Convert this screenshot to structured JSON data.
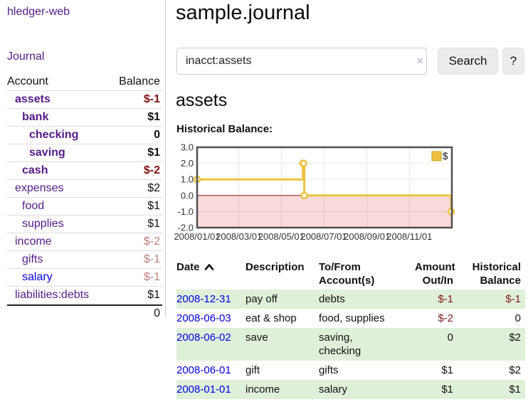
{
  "app": {
    "title": "hledger-web"
  },
  "sidebar": {
    "journal_link": "Journal",
    "accounts_table": {
      "headers": {
        "account": "Account",
        "balance": "Balance"
      },
      "rows": [
        {
          "account": "assets",
          "depth": 1,
          "bold": true,
          "balance": "$-1",
          "balance_style": "neg-strong"
        },
        {
          "account": "bank",
          "depth": 2,
          "bold": true,
          "balance": "$1",
          "balance_style": "pos"
        },
        {
          "account": "checking",
          "depth": 3,
          "bold": true,
          "balance": "0",
          "balance_style": "pos"
        },
        {
          "account": "saving",
          "depth": 3,
          "bold": true,
          "balance": "$1",
          "balance_style": "pos"
        },
        {
          "account": "cash",
          "depth": 2,
          "bold": true,
          "balance": "$-2",
          "balance_style": "neg-strong"
        },
        {
          "account": "expenses",
          "depth": 1,
          "bold": false,
          "balance": "$2",
          "balance_style": "pos"
        },
        {
          "account": "food",
          "depth": 2,
          "bold": false,
          "balance": "$1",
          "balance_style": "pos"
        },
        {
          "account": "supplies",
          "depth": 2,
          "bold": false,
          "balance": "$1",
          "balance_style": "pos"
        },
        {
          "account": "income",
          "depth": 1,
          "bold": false,
          "balance": "$-2",
          "balance_style": "neg-soft"
        },
        {
          "account": "gifts",
          "depth": 2,
          "bold": false,
          "balance": "$-1",
          "balance_style": "neg-soft"
        },
        {
          "account": "salary",
          "depth": 2,
          "bold": false,
          "link_color": "blue",
          "balance": "$-1",
          "balance_style": "neg-soft"
        },
        {
          "account": "liabilities:debts",
          "depth": 1,
          "bold": false,
          "balance": "$1",
          "balance_style": "pos"
        }
      ],
      "total": "0"
    }
  },
  "main": {
    "title": "sample.journal",
    "search": {
      "value": "inacct:assets",
      "clear_icon": "×",
      "button": "Search",
      "help_button": "?"
    },
    "account_heading": "assets",
    "chart_label": "Historical Balance:"
  },
  "chart_data": {
    "type": "line",
    "step": true,
    "title": "Historical Balance:",
    "series": [
      {
        "name": "$",
        "color": "#EDC240",
        "points": [
          {
            "date": "2008-01-01",
            "value": 1
          },
          {
            "date": "2008-06-01",
            "value": 2
          },
          {
            "date": "2008-06-02",
            "value": 2
          },
          {
            "date": "2008-06-03",
            "value": 0
          },
          {
            "date": "2008-12-31",
            "value": -1
          }
        ]
      }
    ],
    "x_range": [
      "2008-01-01",
      "2009-01-01"
    ],
    "ylim": [
      -2,
      3
    ],
    "y_ticks": [
      {
        "v": 3,
        "label": "3.0"
      },
      {
        "v": 2,
        "label": "2.0"
      },
      {
        "v": 1,
        "label": "1.0"
      },
      {
        "v": 0,
        "label": "0.0"
      },
      {
        "v": -1,
        "label": "-1.0"
      },
      {
        "v": -2,
        "label": "-2.0"
      }
    ],
    "x_ticks": [
      {
        "date": "2008-01-01",
        "label": "2008/01/01"
      },
      {
        "date": "2008-03-01",
        "label": "2008/03/01"
      },
      {
        "date": "2008-05-01",
        "label": "2008/05/01"
      },
      {
        "date": "2008-07-01",
        "label": "2008/07/01"
      },
      {
        "date": "2008-09-01",
        "label": "2008/09/01"
      },
      {
        "date": "2008-11-01",
        "label": "2008/11/01"
      }
    ],
    "legend": {
      "label": "$",
      "position": "top-right"
    },
    "grid": true,
    "colors": {
      "negative_region": "#f9d9d9",
      "zero_line": "#8b1515",
      "grid": "rgba(0,0,0,0.09)",
      "border": "#4f4f4f",
      "point_fill": "#ffffff",
      "legend_box_border": "#c9a126",
      "axis_text": "#333333"
    }
  },
  "transactions": {
    "headers": {
      "date": "Date",
      "description": "Description",
      "accounts": "To/From Account(s)",
      "amount": "Amount Out/In",
      "balance": "Historical Balance"
    },
    "rows": [
      {
        "date": "2008-12-31",
        "description": "pay off",
        "accounts": "debts",
        "amount": "$-1",
        "amount_neg": true,
        "balance": "$-1",
        "balance_neg": true,
        "shaded": true
      },
      {
        "date": "2008-06-03",
        "description": "eat & shop",
        "accounts": "food, supplies",
        "amount": "$-2",
        "amount_neg": true,
        "balance": "0",
        "balance_neg": false,
        "shaded": false
      },
      {
        "date": "2008-06-02",
        "description": "save",
        "accounts": "saving, checking",
        "amount": "0",
        "amount_neg": false,
        "balance": "$2",
        "balance_neg": false,
        "shaded": true
      },
      {
        "date": "2008-06-01",
        "description": "gift",
        "accounts": "gifts",
        "amount": "$1",
        "amount_neg": false,
        "balance": "$2",
        "balance_neg": false,
        "shaded": false
      },
      {
        "date": "2008-01-01",
        "description": "income",
        "accounts": "salary",
        "amount": "$1",
        "amount_neg": false,
        "balance": "$1",
        "balance_neg": false,
        "shaded": true
      }
    ]
  }
}
